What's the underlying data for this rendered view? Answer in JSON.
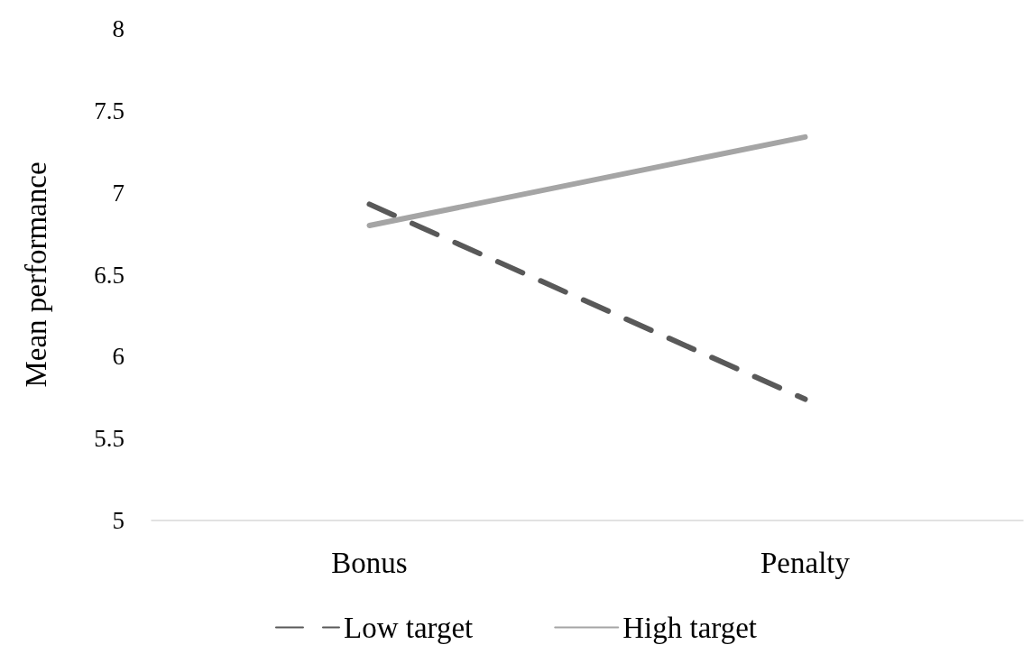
{
  "chart_data": {
    "type": "line",
    "ylabel": "Mean performance",
    "categories": [
      "Bonus",
      "Penalty"
    ],
    "series": [
      {
        "name": "Low target",
        "color": "#595959",
        "values": [
          6.93,
          5.74
        ],
        "line_style": "dashed"
      },
      {
        "name": "High target",
        "color": "#a5a5a5",
        "values": [
          6.8,
          7.34
        ],
        "line_style": "solid"
      }
    ],
    "ylim": [
      5,
      8
    ],
    "yticks": [
      5,
      5.5,
      6,
      6.5,
      7,
      7.5,
      8
    ],
    "grid": false,
    "legend": "bottom"
  }
}
